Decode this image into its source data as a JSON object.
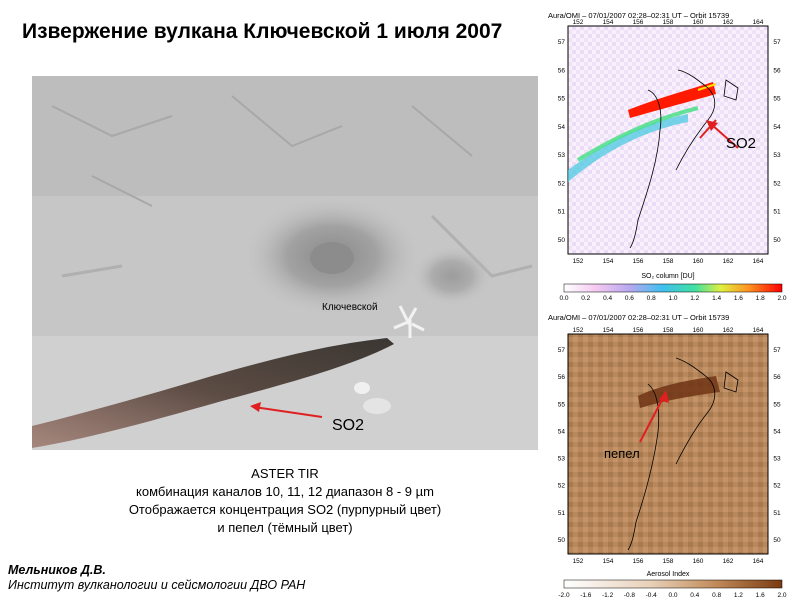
{
  "title": "Извержение вулкана Ключевской 1 июля 2007",
  "aster": {
    "volcano_label": "Ключевской",
    "so2_label": "SO2"
  },
  "caption": {
    "line1": "ASTER TIR",
    "line2": "комбинация каналов 10, 11, 12 диапазон 8 - 9 µm",
    "line3": "Отображается концентрация SO2 (пурпурный цвет)",
    "line4": "и пепел (тёмный цвет)"
  },
  "author": {
    "name": "Мельников Д.В.",
    "institute": "Институт вулканологии  и сейсмологии ДВО РАН"
  },
  "so2_map": {
    "header": "Aura/OMI – 07/01/2007 02:28–02:31 UT – Orbit 15739",
    "arrow_label": "SO2",
    "lon_ticks": [
      "152",
      "154",
      "156",
      "158",
      "160",
      "162",
      "164"
    ],
    "lat_ticks": [
      "57",
      "56",
      "55",
      "54",
      "53",
      "52",
      "51",
      "50"
    ],
    "colorbar_label": "SO₂ column [DU]",
    "colorbar_ticks": [
      "0.0",
      "0.2",
      "0.4",
      "0.6",
      "0.8",
      "1.0",
      "1.2",
      "1.4",
      "1.6",
      "1.8",
      "2.0"
    ]
  },
  "ash_map": {
    "header": "Aura/OMI – 07/01/2007 02:28–02:31 UT – Orbit 15739",
    "arrow_label": "пепел",
    "lon_ticks": [
      "152",
      "154",
      "156",
      "158",
      "160",
      "162",
      "164"
    ],
    "lat_ticks": [
      "57",
      "56",
      "55",
      "54",
      "53",
      "52",
      "51",
      "50"
    ],
    "colorbar_label": "Aerosol Index",
    "colorbar_ticks": [
      "-2.0",
      "-1.6",
      "-1.2",
      "-0.8",
      "-0.4",
      "0.0",
      "0.4",
      "0.8",
      "1.2",
      "1.6",
      "2.0"
    ]
  },
  "colors": {
    "arrow": "#e02020",
    "so2_plume": "#ff1a00",
    "ash_plume": "#6e3414",
    "ash_bg": "#b88a5e"
  }
}
